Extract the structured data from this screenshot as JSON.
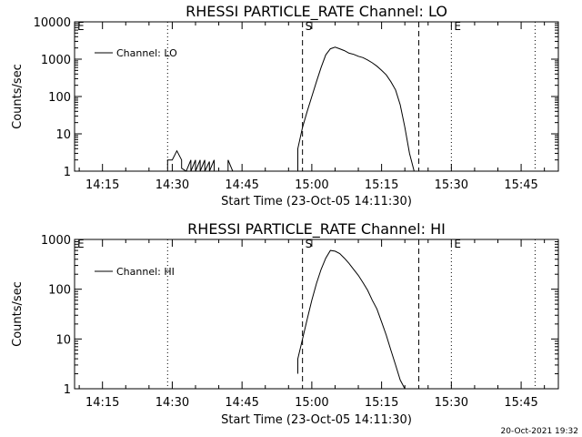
{
  "timestamp": "20-Oct-2021 19:32",
  "colors": {
    "background": "#ffffff",
    "foreground": "#000000"
  },
  "chart_data": [
    {
      "type": "line",
      "title": "RHESSI PARTICLE_RATE Channel: LO",
      "xlabel": "Start Time (23-Oct-05 14:11:30)",
      "ylabel": "Counts/sec",
      "yscale": "log",
      "ylim": [
        1,
        10000
      ],
      "xlim": [
        "14:09",
        "15:53"
      ],
      "xticks": [
        "14:15",
        "14:30",
        "14:45",
        "15:00",
        "15:15",
        "15:30",
        "15:45"
      ],
      "yticks": [
        "1",
        "10",
        "100",
        "1000",
        "10000"
      ],
      "grid": false,
      "legend": "top-left",
      "markers": [
        {
          "time": "14:09",
          "style": "dotted",
          "label": "E"
        },
        {
          "time": "14:29",
          "style": "dotted",
          "label": ""
        },
        {
          "time": "14:58",
          "style": "dashed",
          "label": "S"
        },
        {
          "time": "15:23",
          "style": "dashed",
          "label": ""
        },
        {
          "time": "15:30",
          "style": "dotted",
          "label": "E"
        },
        {
          "time": "15:48",
          "style": "dotted",
          "label": ""
        }
      ],
      "series": [
        {
          "name": "Channel: LO",
          "points": [
            [
              "14:29",
              1
            ],
            [
              "14:29",
              2
            ],
            [
              "14:30",
              2
            ],
            [
              "14:31",
              3.5
            ],
            [
              "14:32",
              2
            ],
            [
              "14:32",
              1.2
            ],
            [
              "14:33",
              1
            ],
            [
              "14:34",
              2
            ],
            [
              "14:34",
              1
            ],
            [
              "14:35",
              2
            ],
            [
              "14:35",
              1
            ],
            [
              "14:36",
              2
            ],
            [
              "14:36",
              1
            ],
            [
              "14:37",
              2
            ],
            [
              "14:37",
              1
            ],
            [
              "14:38",
              1.8
            ],
            [
              "14:38",
              1
            ],
            [
              "14:39",
              2
            ],
            [
              "14:39",
              1
            ],
            [
              "14:42",
              1
            ],
            [
              "14:42",
              2
            ],
            [
              "14:43",
              1
            ],
            [
              "14:57",
              1
            ],
            [
              "14:57",
              4
            ],
            [
              "14:58",
              15
            ],
            [
              "14:59",
              40
            ],
            [
              "15:00",
              100
            ],
            [
              "15:01",
              250
            ],
            [
              "15:02",
              600
            ],
            [
              "15:03",
              1300
            ],
            [
              "15:04",
              1900
            ],
            [
              "15:05",
              2100
            ],
            [
              "15:06",
              1900
            ],
            [
              "15:07",
              1700
            ],
            [
              "15:08",
              1450
            ],
            [
              "15:09",
              1350
            ],
            [
              "15:10",
              1200
            ],
            [
              "15:11",
              1100
            ],
            [
              "15:12",
              950
            ],
            [
              "15:13",
              800
            ],
            [
              "15:14",
              650
            ],
            [
              "15:15",
              500
            ],
            [
              "15:16",
              380
            ],
            [
              "15:17",
              250
            ],
            [
              "15:18",
              150
            ],
            [
              "15:19",
              60
            ],
            [
              "15:20",
              15
            ],
            [
              "15:21",
              3
            ],
            [
              "15:22",
              1
            ]
          ]
        }
      ]
    },
    {
      "type": "line",
      "title": "RHESSI PARTICLE_RATE Channel: HI",
      "xlabel": "Start Time (23-Oct-05 14:11:30)",
      "ylabel": "Counts/sec",
      "yscale": "log",
      "ylim": [
        1,
        1000
      ],
      "xlim": [
        "14:09",
        "15:53"
      ],
      "xticks": [
        "14:15",
        "14:30",
        "14:45",
        "15:00",
        "15:15",
        "15:30",
        "15:45"
      ],
      "yticks": [
        "1",
        "10",
        "100",
        "1000"
      ],
      "grid": false,
      "legend": "top-left",
      "markers": [
        {
          "time": "14:09",
          "style": "dotted",
          "label": "E"
        },
        {
          "time": "14:29",
          "style": "dotted",
          "label": ""
        },
        {
          "time": "14:58",
          "style": "dashed",
          "label": "S"
        },
        {
          "time": "15:23",
          "style": "dashed",
          "label": ""
        },
        {
          "time": "15:30",
          "style": "dotted",
          "label": "E"
        },
        {
          "time": "15:48",
          "style": "dotted",
          "label": ""
        }
      ],
      "series": [
        {
          "name": "Channel: HI",
          "points": [
            [
              "14:57",
              2
            ],
            [
              "14:57",
              4
            ],
            [
              "14:58",
              10
            ],
            [
              "14:59",
              25
            ],
            [
              "15:00",
              60
            ],
            [
              "15:01",
              130
            ],
            [
              "15:02",
              250
            ],
            [
              "15:03",
              420
            ],
            [
              "15:04",
              600
            ],
            [
              "15:05",
              580
            ],
            [
              "15:06",
              520
            ],
            [
              "15:07",
              420
            ],
            [
              "15:08",
              330
            ],
            [
              "15:09",
              250
            ],
            [
              "15:10",
              190
            ],
            [
              "15:11",
              135
            ],
            [
              "15:12",
              95
            ],
            [
              "15:13",
              60
            ],
            [
              "15:14",
              40
            ],
            [
              "15:15",
              22
            ],
            [
              "15:16",
              12
            ],
            [
              "15:17",
              6
            ],
            [
              "15:18",
              3
            ],
            [
              "15:19",
              1.5
            ],
            [
              "15:20",
              1
            ]
          ]
        }
      ]
    }
  ]
}
